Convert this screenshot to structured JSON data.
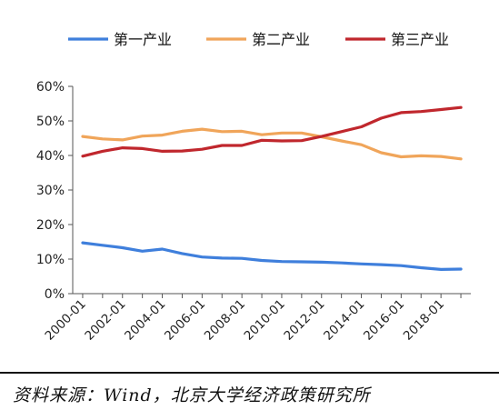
{
  "chart_data": {
    "type": "line",
    "title": "",
    "xlabel": "",
    "ylabel": "",
    "ylim": [
      0,
      60
    ],
    "y_ticks": [
      "0%",
      "10%",
      "20%",
      "30%",
      "40%",
      "50%",
      "60%"
    ],
    "x_tick_labels": [
      "2000-01",
      "2002-01",
      "2004-01",
      "2006-01",
      "2008-01",
      "2010-01",
      "2012-01",
      "2014-01",
      "2016-01",
      "2018-01"
    ],
    "x": [
      2000,
      2001,
      2002,
      2003,
      2004,
      2005,
      2006,
      2007,
      2008,
      2009,
      2010,
      2011,
      2012,
      2013,
      2014,
      2015,
      2016,
      2017,
      2018,
      2019
    ],
    "grid": false,
    "legend_position": "top",
    "series": [
      {
        "name": "第一产业",
        "color": "#3f7fdc",
        "values": [
          14.7,
          14.0,
          13.3,
          12.3,
          12.9,
          11.6,
          10.6,
          10.3,
          10.2,
          9.6,
          9.3,
          9.2,
          9.1,
          8.9,
          8.6,
          8.4,
          8.1,
          7.5,
          7.0,
          7.1
        ]
      },
      {
        "name": "第二产业",
        "color": "#f0a55a",
        "values": [
          45.5,
          44.8,
          44.5,
          45.6,
          45.9,
          47.0,
          47.6,
          46.9,
          47.0,
          46.0,
          46.5,
          46.5,
          45.4,
          44.2,
          43.1,
          40.8,
          39.6,
          39.9,
          39.7,
          39.0
        ]
      },
      {
        "name": "第三产业",
        "color": "#c0272d",
        "values": [
          39.8,
          41.2,
          42.2,
          42.0,
          41.2,
          41.3,
          41.8,
          42.9,
          42.9,
          44.4,
          44.2,
          44.3,
          45.5,
          46.9,
          48.3,
          50.8,
          52.4,
          52.7,
          53.3,
          53.9
        ]
      }
    ]
  },
  "source_text": "资料来源：Wind，北京大学经济政策研究所"
}
